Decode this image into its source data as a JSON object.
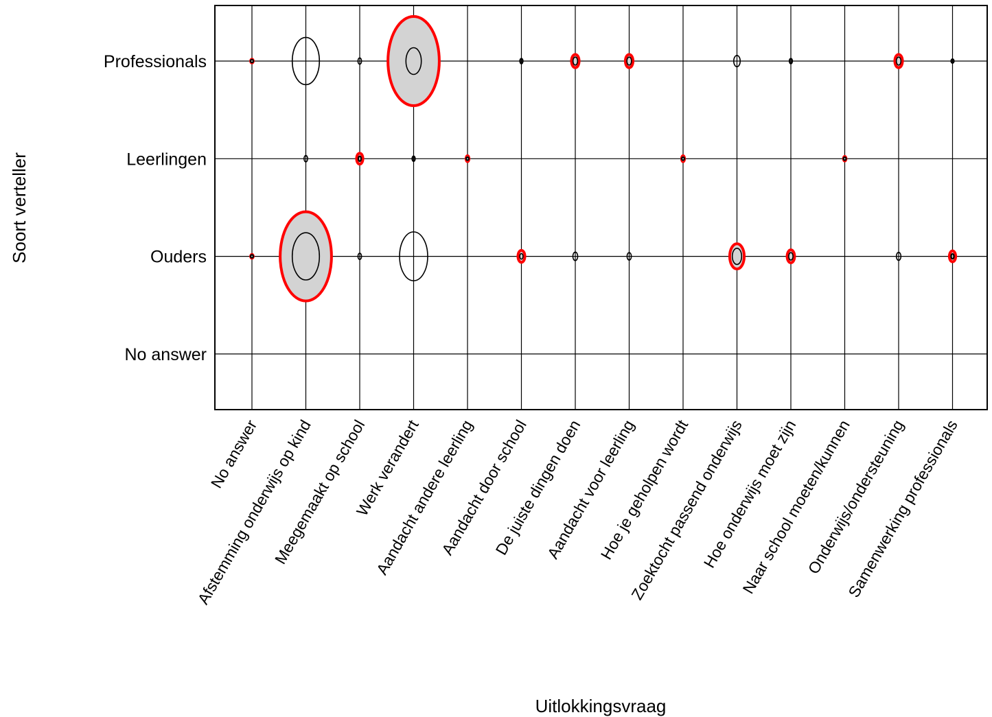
{
  "chart_data": {
    "type": "bubble-matrix",
    "title": "",
    "xlabel": "Uitlokkingsvraag",
    "ylabel": "Soort verteller",
    "categories_x": [
      "No answer",
      "Afstemming onderwijs op kind",
      "Meegemaakt op school",
      "Werk verandert",
      "Aandacht andere leerling",
      "Aandacht door school",
      "De juiste dingen doen",
      "Aandacht voor leerling",
      "Hoe je geholpen wordt",
      "Zoektocht passend onderwijs",
      "Hoe onderwijs moet zijn",
      "Naar school moeten/kunnen",
      "Onderwijs/ondersteuning",
      "Samenwerking professionals"
    ],
    "categories_y": [
      "Professionals",
      "Leerlingen",
      "Ouders",
      "No answer"
    ],
    "grid": true,
    "legend": "none",
    "colors": {
      "observed": "#ff0000",
      "expected": "#000000",
      "fill": "#d3d3d3"
    },
    "cells": [
      {
        "x": "No answer",
        "y": "Professionals",
        "observed": 0.3,
        "expected": 0.1
      },
      {
        "x": "Afstemming onderwijs op kind",
        "y": "Professionals",
        "observed": 0,
        "expected": 28
      },
      {
        "x": "Meegemaakt op school",
        "y": "Professionals",
        "observed": 0,
        "expected": 0.5
      },
      {
        "x": "Werk verandert",
        "y": "Professionals",
        "observed": 100,
        "expected": 9
      },
      {
        "x": "Aandacht andere leerling",
        "y": "Professionals",
        "observed": 0,
        "expected": 0
      },
      {
        "x": "Aandacht door school",
        "y": "Professionals",
        "observed": 0,
        "expected": 0.3
      },
      {
        "x": "De juiste dingen doen",
        "y": "Professionals",
        "observed": 2.2,
        "expected": 0.8
      },
      {
        "x": "Aandacht voor leerling",
        "y": "Professionals",
        "observed": 2.2,
        "expected": 0.8
      },
      {
        "x": "Hoe je geholpen wordt",
        "y": "Professionals",
        "observed": 0,
        "expected": 0
      },
      {
        "x": "Zoektocht passend onderwijs",
        "y": "Professionals",
        "observed": 0,
        "expected": 1.6
      },
      {
        "x": "Hoe onderwijs moet zijn",
        "y": "Professionals",
        "observed": 0,
        "expected": 0.3
      },
      {
        "x": "Naar school moeten/kunnen",
        "y": "Professionals",
        "observed": 0,
        "expected": 0
      },
      {
        "x": "Onderwijs/ondersteuning",
        "y": "Professionals",
        "observed": 2.2,
        "expected": 0.8
      },
      {
        "x": "Samenwerking professionals",
        "y": "Professionals",
        "observed": 0,
        "expected": 0.2
      },
      {
        "x": "Afstemming onderwijs op kind",
        "y": "Leerlingen",
        "observed": 0,
        "expected": 0.5
      },
      {
        "x": "Meegemaakt op school",
        "y": "Leerlingen",
        "observed": 1.5,
        "expected": 0.3
      },
      {
        "x": "Werk verandert",
        "y": "Leerlingen",
        "observed": 0,
        "expected": 0.3
      },
      {
        "x": "Aandacht andere leerling",
        "y": "Leerlingen",
        "observed": 0.6,
        "expected": 0.1
      },
      {
        "x": "Aandacht door school",
        "y": "Leerlingen",
        "observed": 0,
        "expected": 0
      },
      {
        "x": "Hoe je geholpen wordt",
        "y": "Leerlingen",
        "observed": 0.6,
        "expected": 0.1
      },
      {
        "x": "Naar school moeten/kunnen",
        "y": "Leerlingen",
        "observed": 0.4,
        "expected": 0.1
      },
      {
        "x": "No answer",
        "y": "Ouders",
        "observed": 0.3,
        "expected": 0.1
      },
      {
        "x": "Afstemming onderwijs op kind",
        "y": "Ouders",
        "observed": 100,
        "expected": 28
      },
      {
        "x": "Meegemaakt op school",
        "y": "Ouders",
        "observed": 0,
        "expected": 0.5
      },
      {
        "x": "Werk verandert",
        "y": "Ouders",
        "observed": 0,
        "expected": 30
      },
      {
        "x": "Aandacht door school",
        "y": "Ouders",
        "observed": 1.8,
        "expected": 0.4
      },
      {
        "x": "De juiste dingen doen",
        "y": "Ouders",
        "observed": 0,
        "expected": 0.9
      },
      {
        "x": "Aandacht voor leerling",
        "y": "Ouders",
        "observed": 0,
        "expected": 0.7
      },
      {
        "x": "Zoektocht passend onderwijs",
        "y": "Ouders",
        "observed": 8,
        "expected": 3.3
      },
      {
        "x": "Hoe onderwijs moet zijn",
        "y": "Ouders",
        "observed": 2.1,
        "expected": 0.7
      },
      {
        "x": "Onderwijs/ondersteuning",
        "y": "Ouders",
        "observed": 0,
        "expected": 0.8
      },
      {
        "x": "Samenwerking professionals",
        "y": "Ouders",
        "observed": 1.5,
        "expected": 0.3
      }
    ]
  }
}
